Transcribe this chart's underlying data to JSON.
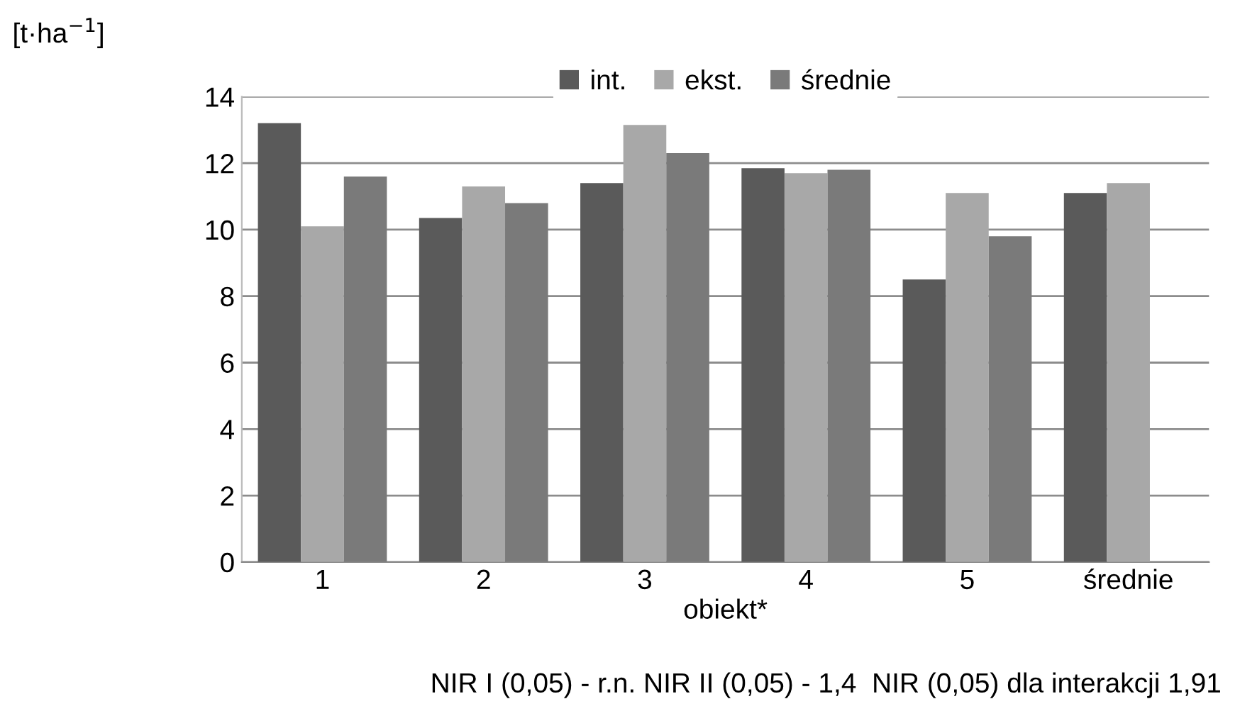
{
  "chart_data": {
    "type": "bar",
    "ylabel": "[t·ha$^{−1}$]",
    "xlabel": "obiekt*",
    "categories": [
      "1",
      "2",
      "3",
      "4",
      "5",
      "średnie"
    ],
    "series": [
      {
        "name": "int.",
        "color": "#5a5a5a",
        "values": [
          13.2,
          10.35,
          11.4,
          11.85,
          8.5,
          11.1
        ]
      },
      {
        "name": "ekst.",
        "color": "#a8a8a8",
        "values": [
          10.1,
          11.3,
          13.15,
          11.7,
          11.1,
          11.4
        ]
      },
      {
        "name": "średnie",
        "color": "#7a7a7a",
        "values": [
          11.6,
          10.8,
          12.3,
          11.8,
          9.8,
          null
        ]
      }
    ],
    "ylim": [
      0,
      14
    ],
    "yticks": [
      0,
      2,
      4,
      6,
      8,
      10,
      12,
      14
    ],
    "grid": "y",
    "legend": "top",
    "annotations": [
      "NIR I (0,05) - r.n. NIR II (0,05) - 1,4  NIR (0,05) dla interakcji 1,91"
    ]
  }
}
